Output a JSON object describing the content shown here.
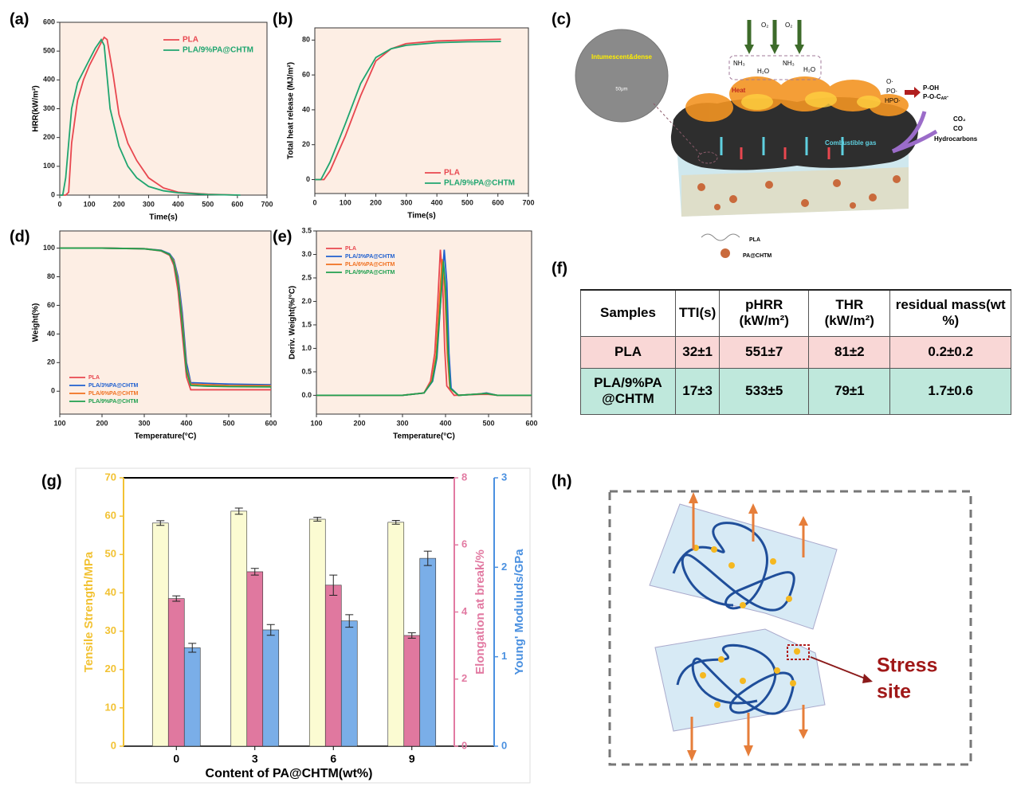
{
  "panels": [
    "(a)",
    "(b)",
    "(c)",
    "(d)",
    "(e)",
    "(f)",
    "(g)",
    "(h)"
  ],
  "chart_data": [
    {
      "type": "line",
      "xlabel": "Time(s)",
      "ylabel": "HRR(kW/m²)",
      "xlim": [
        0,
        700
      ],
      "xticks": [
        0,
        100,
        200,
        300,
        400,
        500,
        600,
        700
      ],
      "ylim": [
        0,
        600
      ],
      "yticks": [
        0,
        100,
        200,
        300,
        400,
        500,
        600
      ],
      "legend": "upper right",
      "series": [
        {
          "name": "PLA",
          "color": "#e8474f",
          "x": [
            0,
            20,
            30,
            40,
            60,
            80,
            100,
            120,
            140,
            150,
            160,
            180,
            200,
            230,
            260,
            300,
            350,
            400,
            500,
            600
          ],
          "values": [
            0,
            0,
            10,
            180,
            330,
            400,
            450,
            490,
            530,
            548,
            540,
            420,
            280,
            180,
            120,
            60,
            25,
            10,
            3,
            0
          ]
        },
        {
          "name": "PLA/9%PA@CHTM",
          "color": "#1fa56f",
          "x": [
            0,
            10,
            20,
            40,
            60,
            80,
            100,
            120,
            140,
            150,
            170,
            200,
            230,
            260,
            300,
            350,
            400,
            500,
            610
          ],
          "values": [
            0,
            0,
            60,
            300,
            390,
            430,
            470,
            510,
            540,
            520,
            300,
            170,
            100,
            60,
            30,
            15,
            8,
            2,
            0
          ]
        }
      ]
    },
    {
      "type": "line",
      "xlabel": "Time(s)",
      "ylabel": "Total heat release (MJ/m²)",
      "xlim": [
        0,
        700
      ],
      "xticks": [
        0,
        100,
        200,
        300,
        400,
        500,
        600,
        700
      ],
      "ylim": [
        -8,
        87
      ],
      "yticks": [
        0,
        20,
        40,
        60,
        80
      ],
      "legend": "lower right",
      "series": [
        {
          "name": "PLA",
          "color": "#e8474f",
          "x": [
            0,
            30,
            50,
            100,
            150,
            200,
            250,
            300,
            400,
            500,
            610
          ],
          "values": [
            0,
            0,
            5,
            25,
            48,
            68,
            75,
            78,
            79.5,
            80,
            80.5
          ]
        },
        {
          "name": "PLA/9%PA@CHTM",
          "color": "#1fa56f",
          "x": [
            0,
            20,
            50,
            100,
            150,
            200,
            250,
            300,
            400,
            500,
            610
          ],
          "values": [
            0,
            0,
            10,
            32,
            55,
            70,
            75,
            77,
            78.5,
            79,
            79.2
          ]
        }
      ]
    },
    {
      "type": "line",
      "xlabel": "Temperature(°C)",
      "ylabel": "Weight(%)",
      "xlim": [
        100,
        600
      ],
      "xticks": [
        100,
        200,
        300,
        400,
        500,
        600
      ],
      "ylim": [
        -16,
        112
      ],
      "yticks": [
        0,
        20,
        40,
        60,
        80,
        100
      ],
      "legend": "lower left",
      "series": [
        {
          "name": "PLA",
          "color": "#e8474f",
          "x": [
            100,
            200,
            300,
            340,
            360,
            370,
            380,
            390,
            400,
            410,
            450,
            500,
            600
          ],
          "values": [
            100,
            100,
            99.5,
            98,
            95,
            88,
            70,
            40,
            10,
            1,
            1,
            1,
            1
          ]
        },
        {
          "name": "PLA/3%PA@CHTM",
          "color": "#2060d0",
          "x": [
            100,
            200,
            300,
            340,
            360,
            370,
            380,
            390,
            400,
            410,
            450,
            500,
            600
          ],
          "values": [
            100,
            100,
            99.6,
            98.5,
            96,
            92,
            80,
            55,
            20,
            6,
            5.5,
            5,
            4.5
          ]
        },
        {
          "name": "PLA/6%PA@CHTM",
          "color": "#f07020",
          "x": [
            100,
            200,
            300,
            340,
            360,
            370,
            380,
            390,
            400,
            410,
            450,
            500,
            600
          ],
          "values": [
            100,
            100,
            99.6,
            98.3,
            95.5,
            91,
            77,
            50,
            16,
            5,
            4.5,
            4,
            3.8
          ]
        },
        {
          "name": "PLA/9%PA@CHTM",
          "color": "#20a050",
          "x": [
            100,
            200,
            300,
            340,
            360,
            370,
            380,
            390,
            400,
            410,
            450,
            500,
            600
          ],
          "values": [
            100,
            100,
            99.5,
            98.2,
            95.5,
            90,
            75,
            47,
            14,
            4,
            3.5,
            3.2,
            3
          ]
        }
      ]
    },
    {
      "type": "line",
      "xlabel": "Temperature(°C)",
      "ylabel": "Deriv. Weight(%/°C)",
      "xlim": [
        100,
        600
      ],
      "xticks": [
        100,
        200,
        300,
        400,
        500,
        600
      ],
      "ylim": [
        -0.4,
        3.5
      ],
      "yticks": [
        {
          "value": 0,
          "label": "0.0"
        },
        {
          "value": 0.5,
          "label": "0.5"
        },
        {
          "value": 1,
          "label": "1.0"
        },
        {
          "value": 1.5,
          "label": "1.5"
        },
        {
          "value": 2,
          "label": "2.0"
        },
        {
          "value": 2.5,
          "label": "2.5"
        },
        {
          "value": 3,
          "label": "3.0"
        },
        {
          "value": 3.5,
          "label": "3.5"
        }
      ],
      "legend": "upper left",
      "series": [
        {
          "name": "PLA",
          "color": "#e8474f",
          "x": [
            100,
            300,
            350,
            365,
            375,
            382,
            388,
            393,
            398,
            403,
            420,
            480,
            500,
            520,
            600
          ],
          "values": [
            0,
            0,
            0.05,
            0.3,
            0.9,
            2,
            3.1,
            2.5,
            1,
            0.2,
            0,
            0.02,
            0.02,
            0,
            0
          ]
        },
        {
          "name": "PLA/3%PA@CHTM",
          "color": "#2060d0",
          "x": [
            100,
            300,
            350,
            370,
            380,
            388,
            397,
            403,
            408,
            413,
            430,
            480,
            495,
            520,
            600
          ],
          "values": [
            0,
            0,
            0.05,
            0.3,
            0.8,
            1.9,
            3.1,
            2.4,
            0.9,
            0.15,
            0,
            0.03,
            0.05,
            0,
            0
          ]
        },
        {
          "name": "PLA/6%PA@CHTM",
          "color": "#f07020",
          "x": [
            100,
            300,
            350,
            368,
            378,
            385,
            392,
            398,
            404,
            410,
            430,
            480,
            495,
            520,
            600
          ],
          "values": [
            0,
            0,
            0.05,
            0.3,
            0.85,
            1.9,
            2.9,
            2.3,
            0.9,
            0.15,
            0,
            0.03,
            0.04,
            0,
            0
          ]
        },
        {
          "name": "PLA/9%PA@CHTM",
          "color": "#20a050",
          "x": [
            100,
            300,
            350,
            369,
            379,
            387,
            395,
            400,
            406,
            411,
            430,
            480,
            495,
            520,
            600
          ],
          "values": [
            0,
            0,
            0.05,
            0.3,
            0.8,
            1.8,
            2.85,
            2.3,
            0.9,
            0.15,
            0,
            0.03,
            0.04,
            0,
            0
          ]
        }
      ]
    },
    {
      "type": "bar",
      "xlabel": "Content of PA@CHTM(wt%)",
      "categories": [
        "0",
        "3",
        "6",
        "9"
      ],
      "ylabel": "Tensile Strength/MPa",
      "y2label": "Elongation at break/%",
      "y3label": "Young' Moduluds/GPa",
      "ylim": [
        0,
        70
      ],
      "yticks": [
        0,
        10,
        20,
        30,
        40,
        50,
        60,
        70
      ],
      "ycolor": "#f2c233",
      "y2lim": [
        0,
        8
      ],
      "y2ticks": [
        0,
        2,
        4,
        6,
        8
      ],
      "y2color": "#e27aa2",
      "y3lim": [
        0,
        3
      ],
      "y3ticks": [
        0,
        1,
        2,
        3
      ],
      "y3color": "#4a90e0",
      "series": [
        {
          "axis": "y",
          "color": "#fbfbd2",
          "values": [
            58.2,
            61.3,
            59.2,
            58.4
          ],
          "errors": [
            0.6,
            0.8,
            0.5,
            0.5
          ]
        },
        {
          "axis": "y2",
          "color": "#e0789f",
          "values": [
            4.4,
            5.2,
            4.8,
            3.3
          ],
          "errors": [
            0.08,
            0.1,
            0.3,
            0.08
          ]
        },
        {
          "axis": "y3",
          "color": "#7aaee8",
          "values": [
            1.1,
            1.3,
            1.4,
            2.1
          ],
          "errors": [
            0.05,
            0.06,
            0.07,
            0.08
          ]
        }
      ]
    }
  ],
  "table": {
    "header": [
      "Samples",
      "TTI(s)",
      "pHRR (kW/m²)",
      "THR (kW/m²)",
      "residual mass(wt %)"
    ],
    "rows": [
      [
        "PLA",
        "32±1",
        "551±7",
        "81±2",
        "0.2±0.2"
      ],
      [
        "PLA/9%PA @CHTM",
        "17±3",
        "533±5",
        "79±1",
        "1.7±0.6"
      ]
    ]
  },
  "scheme_c": {
    "inset": "Intumescent&dense",
    "scale": "50μm",
    "o2": [
      "O₂",
      "O₂"
    ],
    "nh3": [
      "NH₃",
      "NH₃"
    ],
    "h2o": [
      "H₂O",
      "H₂O"
    ],
    "heat": "Heat",
    "gas": "Combustible gas",
    "radicals": [
      "O·",
      "PO·",
      "HPO·"
    ],
    "phosphorus": [
      "P-OH",
      "P-O-C",
      "AR",
      "·"
    ],
    "products": [
      "CO₂",
      "CO",
      "Hydrocarbons"
    ],
    "legend": [
      "PLA",
      "PA@CHTM"
    ]
  },
  "scheme_h": {
    "label": [
      "Stress",
      "site"
    ]
  }
}
